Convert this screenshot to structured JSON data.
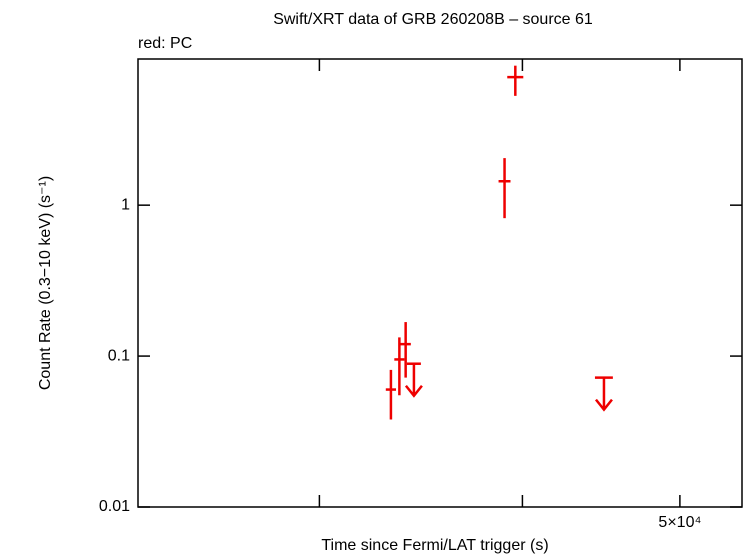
{
  "chart_data": {
    "type": "scatter",
    "title": "Swift/XRT data of GRB 260208B – source 61",
    "subtitle": "red: PC",
    "x_label": "Time since Fermi/LAT trigger (s)",
    "y_label": "Count Rate (0.3−10 keV) (s⁻¹)",
    "color": "#ee0000",
    "log_x": true,
    "log_y": true,
    "xlim": [
      23200,
      54600
    ],
    "xticks": [
      30000,
      40000,
      {
        "value": 50000,
        "label": "5×10⁴"
      }
    ],
    "ylim": [
      0.01,
      9.3
    ],
    "yticks": [
      0.01,
      0.1,
      1
    ],
    "points": [
      {
        "x": 33200,
        "xerr": 240,
        "y": 0.06,
        "yerr_minus": 0.022,
        "yerr_plus": 0.021
      },
      {
        "x": 33600,
        "xerr": 240,
        "y": 0.095,
        "yerr_minus": 0.04,
        "yerr_plus": 0.038
      },
      {
        "x": 33900,
        "xerr": 250,
        "y": 0.12,
        "yerr_minus": 0.048,
        "yerr_plus": 0.048
      },
      {
        "x": 39000,
        "xerr": 330,
        "y": 1.44,
        "yerr_minus": 0.62,
        "yerr_plus": 0.61
      },
      {
        "x": 39600,
        "xerr": 450,
        "y": 7.05,
        "yerr_minus": 1.75,
        "yerr_plus": 1.35
      }
    ],
    "upper_limits": [
      {
        "x": 34300,
        "xerr": 340,
        "y": 0.089
      },
      {
        "x": 44900,
        "xerr": 570,
        "y": 0.072
      }
    ]
  }
}
